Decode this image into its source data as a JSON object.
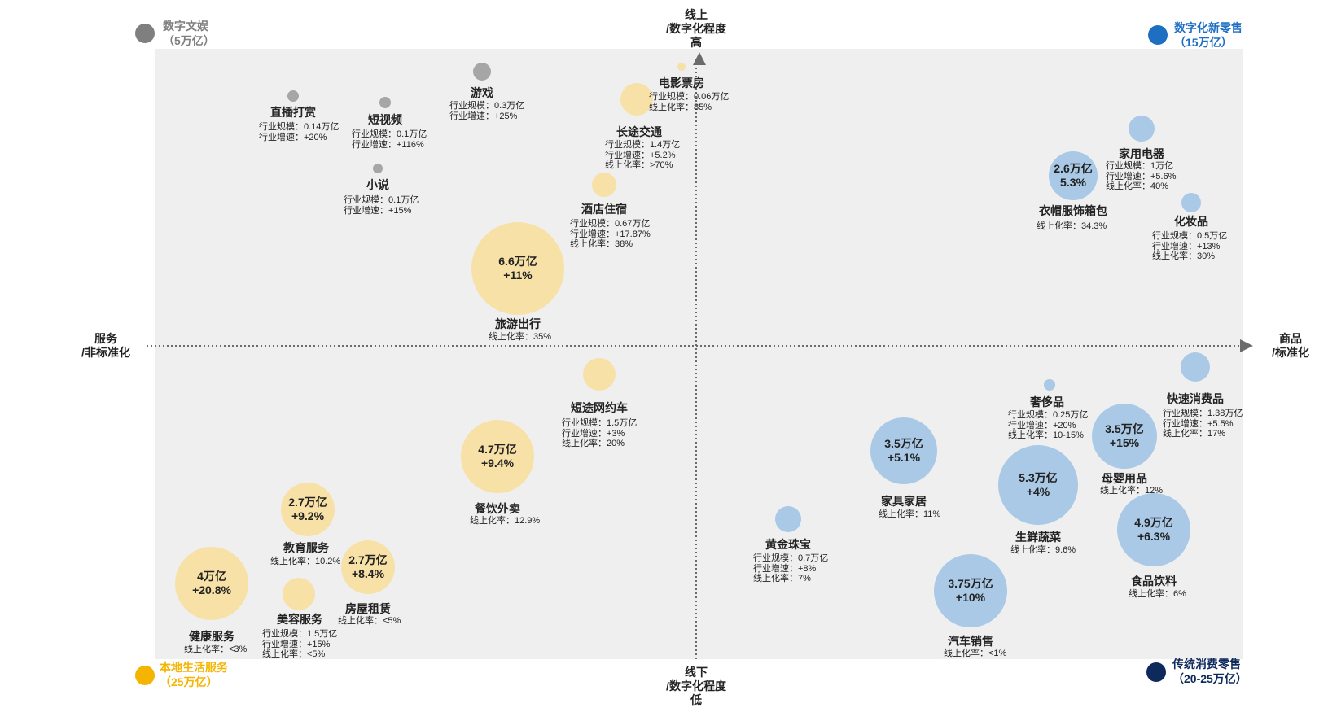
{
  "colors": {
    "grey": "#a6a6a6",
    "blue": "#a9c9e6",
    "yellow": "#f7e1a6",
    "legend_blue": "#1e6fc2",
    "legend_navy": "#0e2a5c",
    "legend_yellow": "#f4b400",
    "legend_grey": "#7f7f7f"
  },
  "axes": {
    "top": "线上\n/数字化程度\n高",
    "bottom": "线下\n/数字化程度\n低",
    "left": "服务\n/非标准化",
    "right": "商品\n/标准化"
  },
  "legend": {
    "tl": {
      "line1": "数字文娱",
      "line2": "（5万亿）"
    },
    "tr": {
      "line1": "数字化新零售",
      "line2": "（15万亿）"
    },
    "bl": {
      "line1": "本地生活服务",
      "line2": "（25万亿）"
    },
    "br": {
      "line1": "传统消费零售",
      "line2": "（20-25万亿）"
    }
  },
  "items": [
    {
      "id": "zhibo",
      "name": "直播打赏",
      "color": "grey",
      "stats": [
        "行业规模：0.14万亿",
        "行业增速：+20%"
      ]
    },
    {
      "id": "duanshipin",
      "name": "短视频",
      "color": "grey",
      "stats": [
        "行业规模：0.1万亿",
        "行业增速：+116%"
      ]
    },
    {
      "id": "youxi",
      "name": "游戏",
      "color": "grey",
      "stats": [
        "行业规模：0.3万亿",
        "行业增速：+25%"
      ]
    },
    {
      "id": "xiaoshuo",
      "name": "小说",
      "color": "grey",
      "stats": [
        "行业规模：0.1万亿",
        "行业增速：+15%"
      ]
    },
    {
      "id": "dianying",
      "name": "电影票房",
      "color": "yellow",
      "stats": [
        "行业规模：0.06万亿",
        "线上化率：85%"
      ]
    },
    {
      "id": "changtu",
      "name": "长途交通",
      "color": "yellow",
      "stats": [
        "行业规模：1.4万亿",
        "行业增速：+5.2%",
        "线上化率：>70%"
      ]
    },
    {
      "id": "jiudian",
      "name": "酒店住宿",
      "color": "yellow",
      "stats": [
        "行业规模：0.67万亿",
        "行业增速：+17.87%",
        "线上化率：38%"
      ]
    },
    {
      "id": "lvyou",
      "name": "旅游出行",
      "color": "yellow",
      "inside": [
        "6.6万亿",
        "+11%"
      ],
      "stats": [
        "线上化率：35%"
      ]
    },
    {
      "id": "jiayong",
      "name": "家用电器",
      "color": "blue",
      "stats": [
        "行业规模：1万亿",
        "行业增速：+5.6%",
        "线上化率：40%"
      ]
    },
    {
      "id": "yimao",
      "name": "衣帽服饰箱包",
      "color": "blue",
      "inside": [
        "2.6万亿",
        "5.3%"
      ],
      "stats": [
        "线上化率：34.3%"
      ]
    },
    {
      "id": "huazhuang",
      "name": "化妆品",
      "color": "blue",
      "stats": [
        "行业规模：0.5万亿",
        "行业增速：+13%",
        "线上化率：30%"
      ]
    },
    {
      "id": "duantu",
      "name": "短途网约车",
      "color": "yellow",
      "stats": [
        "行业规模：1.5万亿",
        "行业增速：+3%",
        "线上化率：20%"
      ]
    },
    {
      "id": "canyin",
      "name": "餐饮外卖",
      "color": "yellow",
      "inside": [
        "4.7万亿",
        "+9.4%"
      ],
      "stats": [
        "线上化率：12.9%"
      ]
    },
    {
      "id": "jiaoyu",
      "name": "教育服务",
      "color": "yellow",
      "inside": [
        "2.7万亿",
        "+9.2%"
      ],
      "stats": [
        "线上化率：10.2%"
      ]
    },
    {
      "id": "fangwu",
      "name": "房屋租赁",
      "color": "yellow",
      "inside": [
        "2.7万亿",
        "+8.4%"
      ],
      "stats": [
        "线上化率：<5%"
      ]
    },
    {
      "id": "meirong",
      "name": "美容服务",
      "color": "yellow",
      "stats": [
        "行业规模：1.5万亿",
        "行业增速：+15%",
        "线上化率：<5%"
      ]
    },
    {
      "id": "jiankang",
      "name": "健康服务",
      "color": "yellow",
      "inside": [
        "4万亿",
        "+20.8%"
      ],
      "stats": [
        "线上化率：<3%"
      ]
    },
    {
      "id": "huangjin",
      "name": "黄金珠宝",
      "color": "blue",
      "stats": [
        "行业规模：0.7万亿",
        "行业增速：+8%",
        "线上化率：7%"
      ]
    },
    {
      "id": "jiaju",
      "name": "家具家居",
      "color": "blue",
      "inside": [
        "3.5万亿",
        "+5.1%"
      ],
      "stats": [
        "线上化率：11%"
      ]
    },
    {
      "id": "shechi",
      "name": "奢侈品",
      "color": "blue",
      "stats": [
        "行业规模：0.25万亿",
        "行业增速：+20%",
        "线上化率：10-15%"
      ]
    },
    {
      "id": "shengxian",
      "name": "生鲜蔬菜",
      "color": "blue",
      "inside": [
        "5.3万亿",
        "+4%"
      ],
      "stats": [
        "线上化率：9.6%"
      ]
    },
    {
      "id": "muying",
      "name": "母婴用品",
      "color": "blue",
      "inside": [
        "3.5万亿",
        "+15%"
      ],
      "stats": [
        "线上化率：12%"
      ]
    },
    {
      "id": "kuaisu",
      "name": "快速消费品",
      "color": "blue",
      "stats": [
        "行业规模：1.38万亿",
        "行业增速：+5.5%",
        "线上化率：17%"
      ]
    },
    {
      "id": "shipin",
      "name": "食品饮料",
      "color": "blue",
      "inside": [
        "4.9万亿",
        "+6.3%"
      ],
      "stats": [
        "线上化率：6%"
      ]
    },
    {
      "id": "qiche",
      "name": "汽车销售",
      "color": "blue",
      "inside": [
        "3.75万亿",
        "+10%"
      ],
      "stats": [
        "线上化率：<1%"
      ]
    }
  ]
}
